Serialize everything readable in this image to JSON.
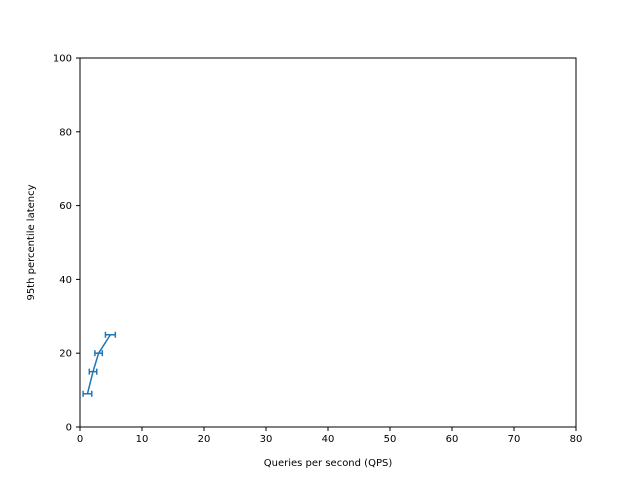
{
  "chart_data": {
    "type": "line",
    "title": "",
    "xlabel": "Queries per second (QPS)",
    "ylabel": "95th percentile latency",
    "xlim": [
      0,
      80
    ],
    "ylim": [
      0,
      100
    ],
    "xticks": [
      0,
      10,
      20,
      30,
      40,
      50,
      60,
      70,
      80
    ],
    "yticks": [
      0,
      20,
      40,
      60,
      80,
      100
    ],
    "grid": false,
    "legend": "none",
    "series": [
      {
        "color": "#1f77b4",
        "x": [
          1.2,
          2.1,
          3.0,
          4.9
        ],
        "y": [
          9,
          15,
          20,
          25
        ],
        "xerr": [
          0.7,
          0.6,
          0.6,
          0.8
        ]
      }
    ]
  }
}
